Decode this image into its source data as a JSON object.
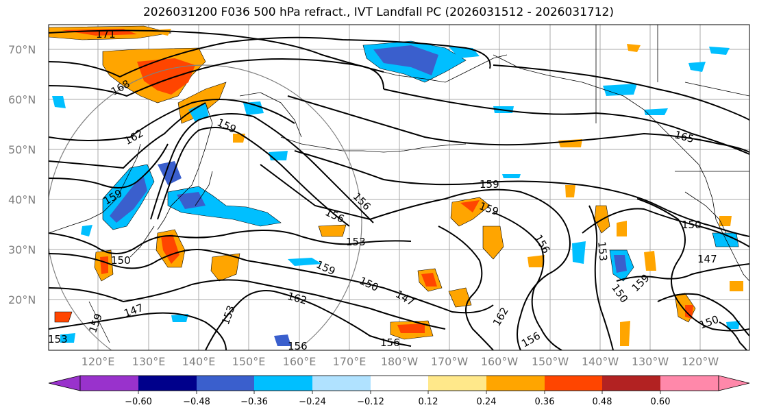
{
  "title": "2026031200 F036 500 hPa refract., IVT Landfall PC (2026031512 - 2026031712)",
  "lat_labels": [
    "70°N",
    "60°N",
    "50°N",
    "40°N",
    "30°N",
    "20°N"
  ],
  "lon_labels": [
    "120°E",
    "130°E",
    "140°E",
    "150°E",
    "160°E",
    "170°E",
    "180°W",
    "170°W",
    "160°W",
    "150°W",
    "140°W",
    "130°W",
    "120°W"
  ],
  "contour_labels": [
    "171",
    "168",
    "162",
    "159",
    "159",
    "165",
    "159",
    "159",
    "156",
    "156",
    "156",
    "153",
    "150",
    "159",
    "150",
    "147",
    "162",
    "156",
    "156",
    "162",
    "156",
    "153",
    "159",
    "150",
    "150",
    "147",
    "150",
    "147",
    "153",
    "153",
    "159"
  ],
  "colorbar": {
    "ticks": [
      "−0.60",
      "−0.48",
      "−0.36",
      "−0.24",
      "−0.12",
      "0.12",
      "0.24",
      "0.36",
      "0.48",
      "0.60"
    ],
    "colors": [
      "#9932cc",
      "#00008b",
      "#3a5fcd",
      "#00bfff",
      "#b0e2ff",
      "#ffffff",
      "#ffe88a",
      "#ffa500",
      "#ff4500",
      "#b22222",
      "#ff88aa"
    ]
  },
  "colors": {
    "positive_low": "#ffe88a",
    "positive_mid": "#ffa500",
    "positive_high": "#ff4500",
    "negative_low": "#b0e2ff",
    "negative_mid": "#00bfff",
    "negative_high": "#3a5fcd"
  }
}
